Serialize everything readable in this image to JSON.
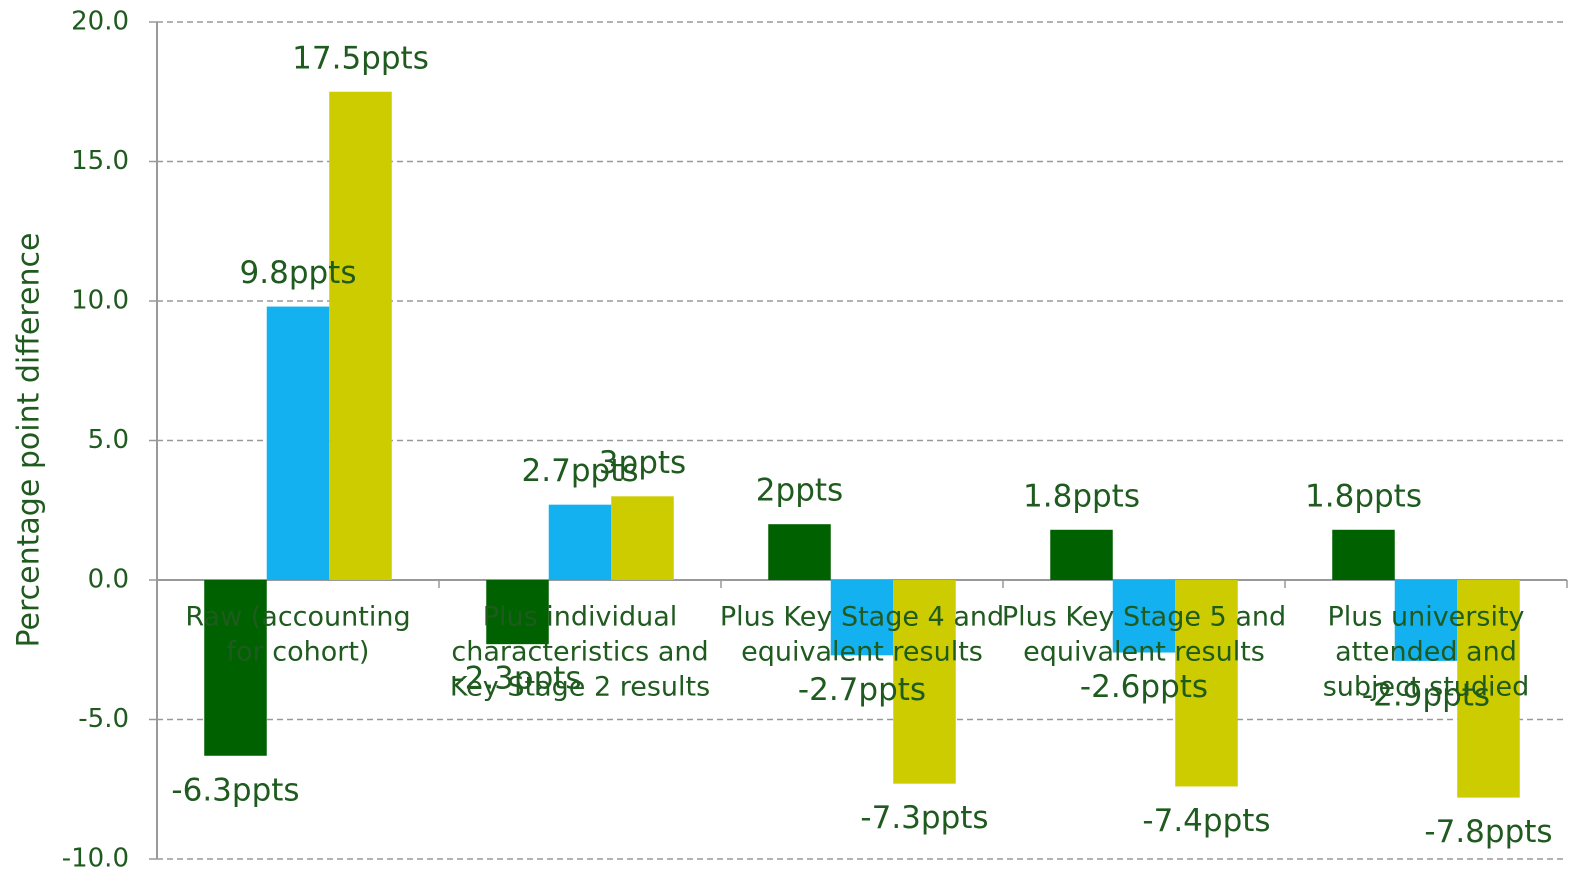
{
  "chart_data": {
    "type": "bar",
    "y_label": "Percentage point difference",
    "categories": [
      [
        "Raw (accounting",
        "for cohort)"
      ],
      [
        "Plus individual",
        "characteristics and",
        "Key Stage 2 results"
      ],
      [
        "Plus Key Stage 4 and",
        "equivalent results"
      ],
      [
        "Plus Key Stage 5 and",
        "equivalent results"
      ],
      [
        "Plus university",
        "attended and",
        "subject studied"
      ]
    ],
    "series": [
      {
        "color": "#006100",
        "values": [
          -6.3,
          -2.3,
          2,
          1.8,
          1.8
        ],
        "value_labels": [
          "-6.3ppts",
          "-2.3ppts",
          "2ppts",
          "1.8ppts",
          "1.8ppts"
        ]
      },
      {
        "color": "#14b1f0",
        "values": [
          9.8,
          2.7,
          -2.7,
          -2.6,
          -2.9
        ],
        "value_labels": [
          "9.8ppts",
          "2.7ppts",
          "-2.7ppts",
          "-2.6ppts",
          "-2.9ppts"
        ]
      },
      {
        "color": "#cccc00",
        "values": [
          17.5,
          3,
          -7.3,
          -7.4,
          -7.8
        ],
        "value_labels": [
          "17.5ppts",
          "3ppts",
          "-7.3ppts",
          "-7.4ppts",
          "-7.8ppts"
        ]
      }
    ],
    "ylim": [
      -10,
      20
    ],
    "yticks": [
      {
        "value": -10,
        "label": "-10.0"
      },
      {
        "value": -5,
        "label": "-5.0"
      },
      {
        "value": 0,
        "label": "0.0"
      },
      {
        "value": 5,
        "label": "5.0"
      },
      {
        "value": 10,
        "label": "10.0"
      },
      {
        "value": 15,
        "label": "15.0"
      },
      {
        "value": 20,
        "label": "20.0"
      }
    ],
    "grid": true
  }
}
